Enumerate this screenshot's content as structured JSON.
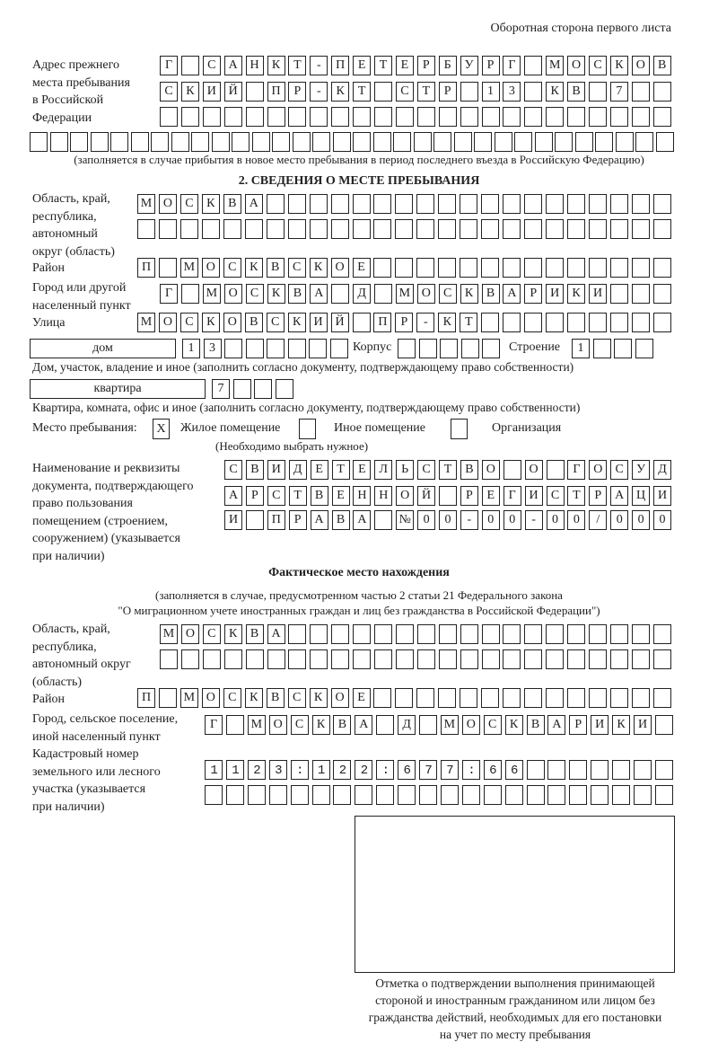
{
  "header": {
    "page_side": "Оборотная сторона первого листа"
  },
  "previous_address": {
    "label": "Адрес прежнего\nместа пребывания\nв Российской\nФедерации",
    "rows": [
      "Г САНКТ-ПЕТЕРБУРГ МОСКОВ",
      "СКИЙ ПР-КТ СТР 13 КВ 7",
      "",
      ""
    ],
    "note": "(заполняется в случае прибытия в новое место пребывания в период последнего въезда в Российскую Федерацию)"
  },
  "section2": {
    "title": "2. СВЕДЕНИЯ О МЕСТЕ ПРЕБЫВАНИЯ",
    "region_label": "Область, край,\nреспублика,\nавтономный\nокруг (область)",
    "region_rows": [
      "МОСКВА",
      ""
    ],
    "district_label": "Район",
    "district": "П МОСКВСКОЕ",
    "city_label": "Город или другой\nнаселенный пункт",
    "city": "Г МОСКВА Д МОСКВАРИКИ",
    "street_label": "Улица",
    "street": "МОСКОВСКИЙ ПР-КТ",
    "house_type": "дом",
    "house_number": "13",
    "building_label": "Корпус",
    "building": "",
    "structure_label": "Строение",
    "structure": "1",
    "house_note": "Дом, участок, владение и иное (заполнить согласно документу, подтверждающему право собственности)",
    "apartment_type": "квартира",
    "apartment_number": "7",
    "apartment_note": "Квартира, комната, офис и иное (заполнить согласно документу, подтверждающему право собственности)",
    "stay_place_label": "Место пребывания:",
    "stay_options": [
      {
        "label": "Жилое помещение",
        "mark": "X"
      },
      {
        "label": "Иное помещение",
        "mark": ""
      },
      {
        "label": "Организация",
        "mark": ""
      }
    ],
    "stay_note": "(Необходимо выбрать нужное)",
    "document_label": "Наименование и реквизиты\nдокумента, подтверждающего\nправо пользования\nпомещением (строением,\nсооружением) (указывается\nпри наличии)",
    "document_rows": [
      "СВИДЕТЕЛЬСТВО О ГОСУД",
      "АРСТВЕННОЙ РЕГИСТРАЦИ",
      "И ПРАВА №00-00-00/000"
    ]
  },
  "actual_location": {
    "title": "Фактическое место нахождения",
    "note_line1": "(заполняется в случае, предусмотренном частью 2 статьи 21 Федерального закона",
    "note_line2": "\"О миграционном учете иностранных граждан и лиц без гражданства в Российской Федерации\")",
    "region_label": "Область, край,\nреспублика,\nавтономный округ\n(область)",
    "region_rows": [
      "МОСКВА",
      ""
    ],
    "district_label": "Район",
    "district": "П МОСКВСКОЕ",
    "city_label": "Город, сельское поселение,\nиной населенный пункт",
    "city": "Г МОСКВА Д МОСКВАРИКИ",
    "cadastral_label": "Кадастровый номер\nземельного или лесного\nучастка (указывается\nпри наличии)",
    "cadastral_rows": [
      "1123:122:677:66",
      ""
    ]
  },
  "confirmation": {
    "caption": "Отметка о подтверждении выполнения принимающей\nстороной и иностранным гражданином или лицом без\nгражданства действий, необходимых для его постановки\nна учет по месту пребывания"
  }
}
